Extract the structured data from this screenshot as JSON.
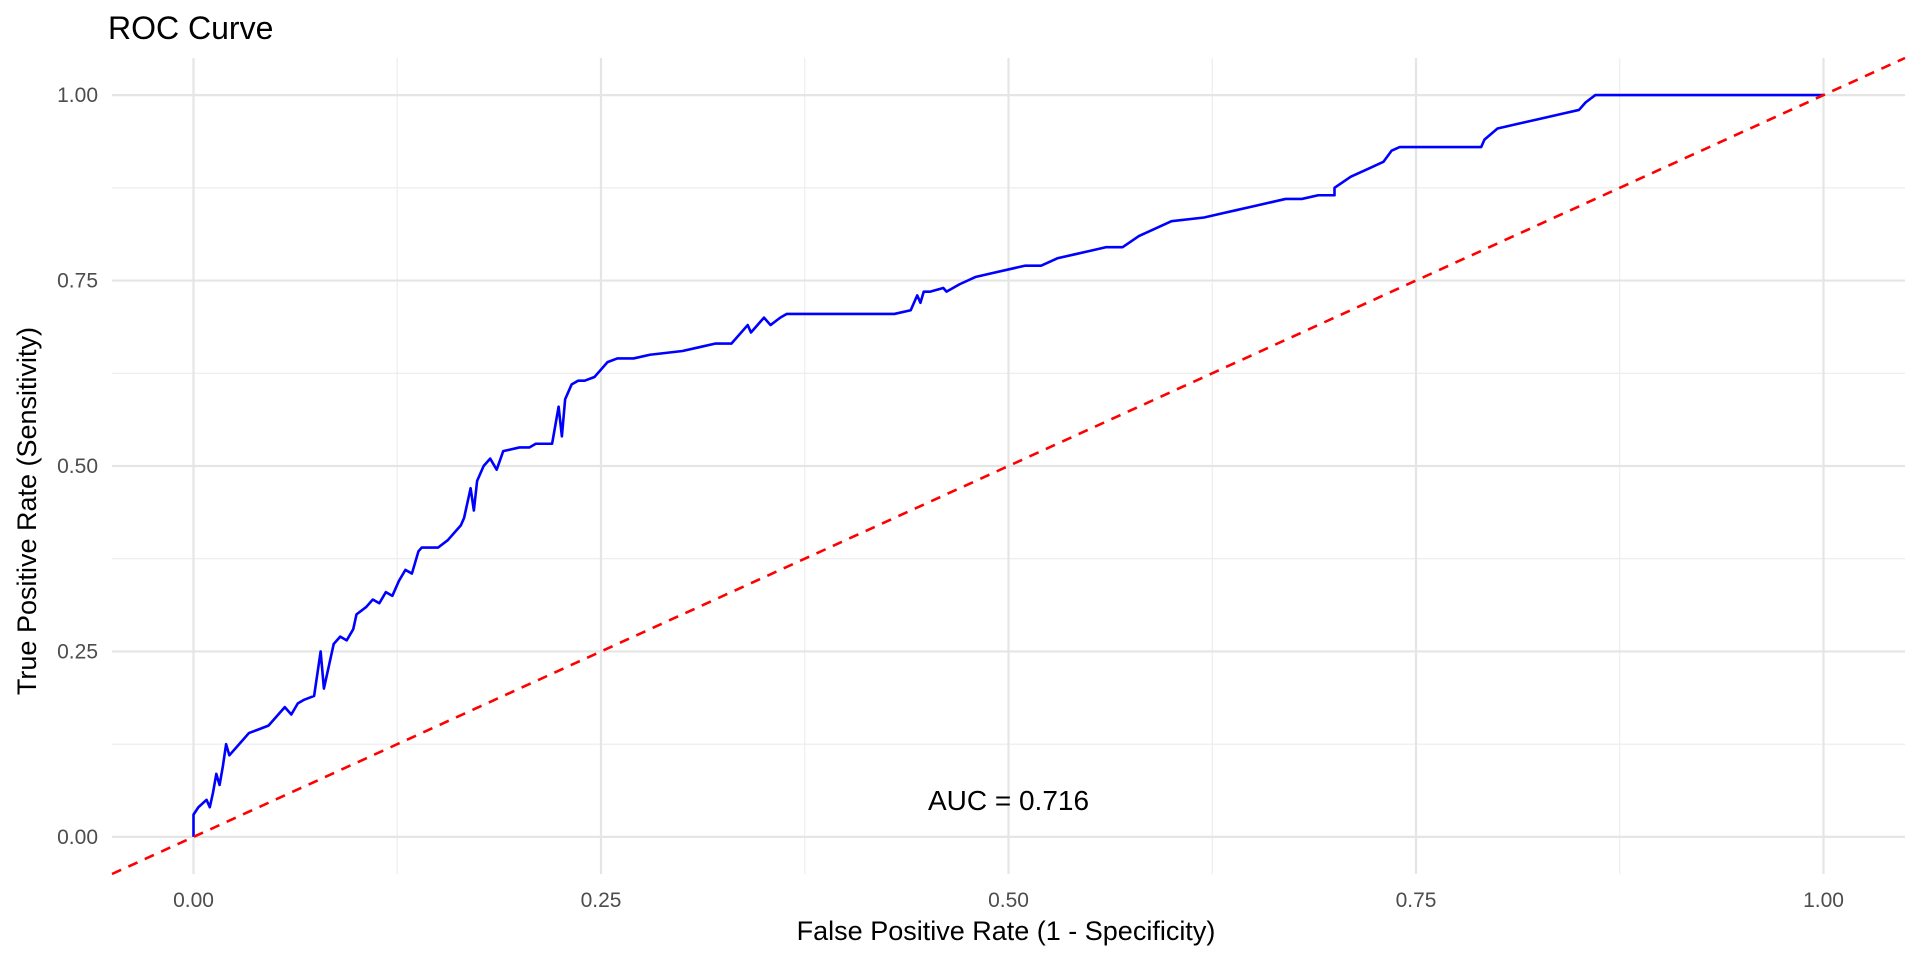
{
  "chart_data": {
    "type": "line",
    "title": "ROC Curve",
    "xlabel": "False Positive Rate (1 - Specificity)",
    "ylabel": "True Positive Rate (Sensitivity)",
    "xlim": [
      -0.05,
      1.05
    ],
    "ylim": [
      -0.05,
      1.05
    ],
    "x_ticks": [
      0,
      0.25,
      0.5,
      0.75,
      1
    ],
    "x_tick_labels": [
      "0.00",
      "0.25",
      "0.50",
      "0.75",
      "1.00"
    ],
    "y_ticks": [
      0,
      0.25,
      0.5,
      0.75,
      1
    ],
    "y_tick_labels": [
      "0.00",
      "0.25",
      "0.50",
      "0.75",
      "1.00"
    ],
    "grid": true,
    "annotation": {
      "text": "AUC = 0.716",
      "x": 0.5,
      "y": 0.05
    },
    "series": [
      {
        "color": "#0000ff",
        "line_style": "solid",
        "x": [
          0,
          0,
          0.003,
          0.008,
          0.01,
          0.012,
          0.014,
          0.016,
          0.018,
          0.02,
          0.022,
          0.03,
          0.034,
          0.04,
          0.046,
          0.05,
          0.056,
          0.06,
          0.064,
          0.068,
          0.074,
          0.078,
          0.08,
          0.086,
          0.09,
          0.094,
          0.098,
          0.1,
          0.106,
          0.11,
          0.114,
          0.118,
          0.122,
          0.126,
          0.13,
          0.134,
          0.136,
          0.138,
          0.14,
          0.15,
          0.156,
          0.16,
          0.164,
          0.166,
          0.17,
          0.172,
          0.174,
          0.178,
          0.182,
          0.186,
          0.19,
          0.2,
          0.206,
          0.21,
          0.22,
          0.224,
          0.226,
          0.228,
          0.23,
          0.232,
          0.236,
          0.24,
          0.246,
          0.25,
          0.254,
          0.26,
          0.27,
          0.28,
          0.3,
          0.31,
          0.32,
          0.33,
          0.34,
          0.342,
          0.35,
          0.354,
          0.36,
          0.364,
          0.37,
          0.38,
          0.4,
          0.43,
          0.44,
          0.444,
          0.446,
          0.448,
          0.45,
          0.452,
          0.46,
          0.462,
          0.47,
          0.48,
          0.49,
          0.5,
          0.51,
          0.52,
          0.53,
          0.54,
          0.55,
          0.56,
          0.57,
          0.58,
          0.6,
          0.62,
          0.63,
          0.64,
          0.65,
          0.66,
          0.67,
          0.68,
          0.69,
          0.7,
          0.7,
          0.71,
          0.72,
          0.73,
          0.735,
          0.74,
          0.78,
          0.79,
          0.792,
          0.8,
          0.81,
          0.83,
          0.84,
          0.85,
          0.854,
          0.86,
          0.87,
          0.9,
          1
        ],
        "y": [
          0,
          0.03,
          0.04,
          0.05,
          0.04,
          0.06,
          0.085,
          0.07,
          0.095,
          0.125,
          0.11,
          0.13,
          0.14,
          0.145,
          0.15,
          0.16,
          0.175,
          0.165,
          0.18,
          0.185,
          0.19,
          0.25,
          0.2,
          0.26,
          0.27,
          0.265,
          0.28,
          0.3,
          0.31,
          0.32,
          0.315,
          0.33,
          0.325,
          0.345,
          0.36,
          0.355,
          0.37,
          0.385,
          0.39,
          0.39,
          0.4,
          0.41,
          0.42,
          0.43,
          0.47,
          0.44,
          0.48,
          0.5,
          0.51,
          0.495,
          0.52,
          0.525,
          0.525,
          0.53,
          0.53,
          0.58,
          0.54,
          0.59,
          0.6,
          0.61,
          0.615,
          0.615,
          0.62,
          0.63,
          0.64,
          0.645,
          0.645,
          0.65,
          0.655,
          0.66,
          0.665,
          0.665,
          0.69,
          0.68,
          0.7,
          0.69,
          0.7,
          0.705,
          0.705,
          0.705,
          0.705,
          0.705,
          0.71,
          0.73,
          0.72,
          0.735,
          0.735,
          0.735,
          0.74,
          0.735,
          0.745,
          0.755,
          0.76,
          0.765,
          0.77,
          0.77,
          0.78,
          0.785,
          0.79,
          0.795,
          0.795,
          0.81,
          0.83,
          0.835,
          0.84,
          0.845,
          0.85,
          0.855,
          0.86,
          0.86,
          0.865,
          0.865,
          0.875,
          0.89,
          0.9,
          0.91,
          0.925,
          0.93,
          0.93,
          0.93,
          0.94,
          0.955,
          0.96,
          0.97,
          0.975,
          0.98,
          0.99,
          1,
          1,
          1,
          1
        ]
      },
      {
        "color": "#ff0000",
        "line_style": "dashed",
        "x": [
          -0.05,
          1.05
        ],
        "y": [
          -0.05,
          1.05
        ]
      }
    ]
  }
}
